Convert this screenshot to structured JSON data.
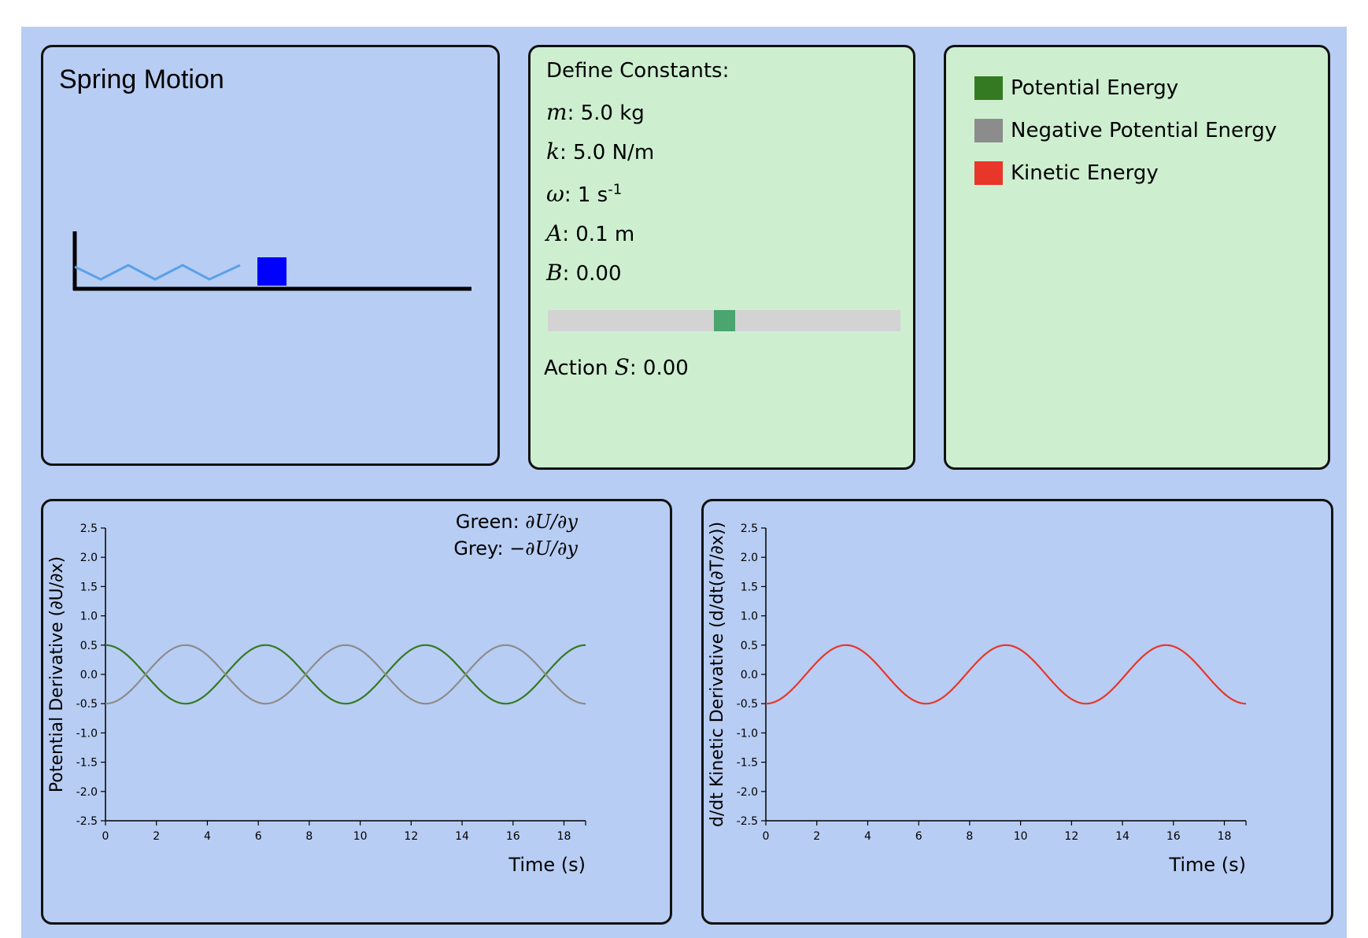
{
  "spring": {
    "title": "Spring Motion",
    "colors": {
      "spring": "#5aa0ea",
      "mass": "#0000ff",
      "wall": "#000000"
    }
  },
  "constants": {
    "heading": "Define Constants:",
    "m": {
      "symbol": "m",
      "value": ": 5.0 kg"
    },
    "k": {
      "symbol": "k",
      "value": ": 5.0 N/m"
    },
    "omega": {
      "symbol": "ω",
      "value": ": 1 s",
      "exponent": "-1"
    },
    "A": {
      "symbol": "A",
      "value": ": 0.1 m"
    },
    "B": {
      "symbol": "B",
      "value": ": 0.00"
    },
    "slider": {
      "value": 0.0,
      "min": -1,
      "max": 1,
      "fraction": 0.5,
      "color": "#4aa56e"
    },
    "action": {
      "prefix": "Action ",
      "symbol": "S",
      "value": ": 0.00"
    }
  },
  "legend": {
    "items": [
      {
        "label": "Potential Energy",
        "color": "#347a22"
      },
      {
        "label": "Negative Potential Energy",
        "color": "#8c8c8c"
      },
      {
        "label": "Kinetic Energy",
        "color": "#e8362a"
      }
    ]
  },
  "chart_data": [
    {
      "type": "line",
      "ylabel": "Potential Derivative (∂U/∂x)",
      "xlabel": "Time (s)",
      "annotation_line1": {
        "prefix": "Green: ",
        "math": "∂U/∂y"
      },
      "annotation_line2": {
        "prefix": "Grey: ",
        "math": "−∂U/∂y"
      },
      "xlim": [
        0,
        18.85
      ],
      "ylim": [
        -2.5,
        2.5
      ],
      "xticks": [
        "0",
        "2",
        "4",
        "6",
        "8",
        "10",
        "12",
        "14",
        "16",
        "18"
      ],
      "yticks": [
        "2.5",
        "2.0",
        "1.5",
        "1.0",
        "0.5",
        "0.0",
        "-0.5",
        "-1.0",
        "-1.5",
        "-2.0",
        "-2.5"
      ],
      "series": [
        {
          "color": "#347a22",
          "function": "0.5*cos(t)"
        },
        {
          "color": "#8c8c8c",
          "function": "-0.5*cos(t)"
        }
      ],
      "grid": false
    },
    {
      "type": "line",
      "ylabel": "d/dt Kinetic Derivative (d/dt(∂T/∂x))",
      "xlabel": "Time (s)",
      "xlim": [
        0,
        18.85
      ],
      "ylim": [
        -2.5,
        2.5
      ],
      "xticks": [
        "0",
        "2",
        "4",
        "6",
        "8",
        "10",
        "12",
        "14",
        "16",
        "18"
      ],
      "yticks": [
        "2.5",
        "2.0",
        "1.5",
        "1.0",
        "0.5",
        "0.0",
        "-0.5",
        "-1.0",
        "-1.5",
        "-2.0",
        "-2.5"
      ],
      "series": [
        {
          "color": "#e8362a",
          "function": "-0.5*cos(t)"
        }
      ],
      "grid": false
    }
  ]
}
